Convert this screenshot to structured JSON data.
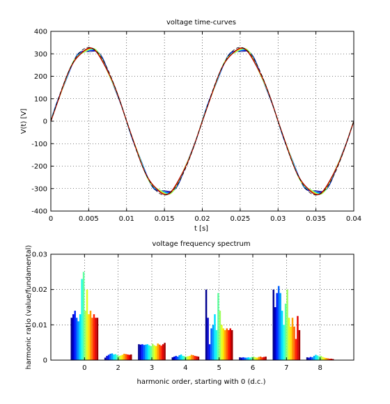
{
  "chart_data": [
    {
      "type": "line",
      "title": "voltage time-curves",
      "xlabel": "t [s]",
      "ylabel": "V(t) [V]",
      "xlim": [
        0,
        0.04
      ],
      "ylim": [
        -400,
        400
      ],
      "xticks": [
        "0",
        "0.005",
        "0.01",
        "0.015",
        "0.02",
        "0.025",
        "0.03",
        "0.035",
        "0.04"
      ],
      "yticks": [
        "400",
        "300",
        "200",
        "100",
        "0",
        "-100",
        "-200",
        "-300",
        "-400"
      ],
      "grid": true,
      "frequency_hz": 50,
      "fundamental_amplitude": 322,
      "series_count": 16,
      "reference_style": "dashed-black",
      "series_harmonics": [
        [
          0.012,
          0.0007,
          0.0045,
          0.0008,
          0.02,
          0.0008,
          0.02,
          0.0008
        ],
        [
          0.013,
          0.0012,
          0.0044,
          0.001,
          0.012,
          0.0007,
          0.015,
          0.0007
        ],
        [
          0.014,
          0.0015,
          0.0045,
          0.0012,
          0.0045,
          0.0008,
          0.019,
          0.0009
        ],
        [
          0.012,
          0.0018,
          0.0043,
          0.001,
          0.009,
          0.0007,
          0.021,
          0.0008
        ],
        [
          0.011,
          0.0019,
          0.0044,
          0.0014,
          0.01,
          0.0007,
          0.019,
          0.0012
        ],
        [
          0.013,
          0.0016,
          0.0045,
          0.0016,
          0.013,
          0.0008,
          0.014,
          0.0015
        ],
        [
          0.023,
          0.0017,
          0.0042,
          0.0012,
          0.0085,
          0.0007,
          0.01,
          0.0013
        ],
        [
          0.025,
          0.0014,
          0.004,
          0.0011,
          0.019,
          0.0009,
          0.016,
          0.0011
        ],
        [
          0.014,
          0.0012,
          0.0046,
          0.001,
          0.014,
          0.001,
          0.02,
          0.0012
        ],
        [
          0.02,
          0.0013,
          0.0042,
          0.0011,
          0.01,
          0.0008,
          0.012,
          0.0009
        ],
        [
          0.013,
          0.0015,
          0.004,
          0.0012,
          0.009,
          0.0007,
          0.0095,
          0.0007
        ],
        [
          0.014,
          0.0018,
          0.0047,
          0.0015,
          0.0085,
          0.0009,
          0.012,
          0.0006
        ],
        [
          0.012,
          0.0017,
          0.0044,
          0.0014,
          0.009,
          0.001,
          0.0095,
          0.0005
        ],
        [
          0.013,
          0.0016,
          0.0041,
          0.0012,
          0.0085,
          0.0008,
          0.006,
          0.0004
        ],
        [
          0.012,
          0.0015,
          0.0045,
          0.0011,
          0.009,
          0.0009,
          0.0125,
          0.0004
        ],
        [
          0.012,
          0.0016,
          0.0049,
          0.001,
          0.0085,
          0.001,
          0.0085,
          0.0003
        ]
      ],
      "colors": [
        "#00008f",
        "#0000cf",
        "#0020ff",
        "#0060ff",
        "#00a0ff",
        "#00e0ff",
        "#20ffdf",
        "#60ff9f",
        "#a0ff60",
        "#dfff20",
        "#ffe000",
        "#ffa000",
        "#ff6000",
        "#ff2000",
        "#df0000",
        "#9f0000"
      ]
    },
    {
      "type": "bar",
      "title": "voltage frequency spectrum",
      "xlabel": "harmonic order, starting with 0 (d.c.)",
      "ylabel": "harmonic ratio (value/fundamental)",
      "categories": [
        "0",
        "2",
        "3",
        "4",
        "5",
        "6",
        "7",
        "8"
      ],
      "ylim": [
        0,
        0.03
      ],
      "yticks": [
        "0.03",
        "0.02",
        "0.01",
        "0"
      ],
      "grid": true
    }
  ]
}
